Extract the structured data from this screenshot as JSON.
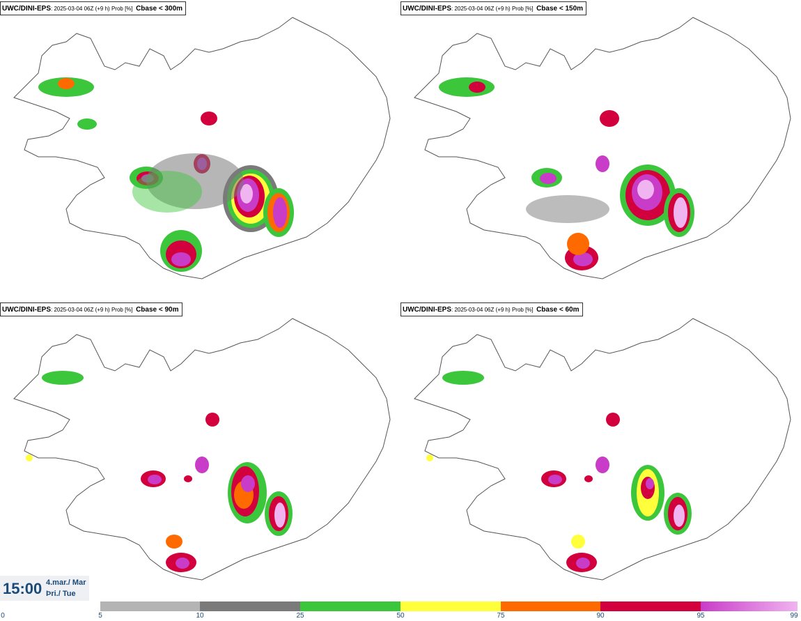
{
  "panels": [
    {
      "model": "UWC/DINI-EPS",
      "info": ": 2025-03-04 06Z (+9 h) Prob [%]",
      "param": "Cbase < 300m"
    },
    {
      "model": "UWC/DINI-EPS",
      "info": ": 2025-03-04 06Z (+9 h) Prob [%]",
      "param": "Cbase < 150m"
    },
    {
      "model": "UWC/DINI-EPS",
      "info": ": 2025-03-04 06Z (+9 h) Prob [%]",
      "param": "Cbase < 90m"
    },
    {
      "model": "UWC/DINI-EPS",
      "info": ": 2025-03-04 06Z (+9 h) Prob [%]",
      "param": "Cbase < 60m"
    }
  ],
  "time": {
    "clock": "15:00",
    "date": "4.mar./ Mar",
    "day": "Þri./ Tue"
  },
  "legend": {
    "ticks": [
      "0",
      "5",
      "10",
      "25",
      "50",
      "75",
      "90",
      "95",
      "99"
    ],
    "colors": [
      "#b4b4b4",
      "#7a7a7a",
      "#3cc63c",
      "#ffff3c",
      "#ff6a00",
      "#d2003c",
      "#c83cc8",
      "#f0b4f0"
    ]
  },
  "map_colors": {
    "land": "#ffffff",
    "outline": "#555555"
  }
}
